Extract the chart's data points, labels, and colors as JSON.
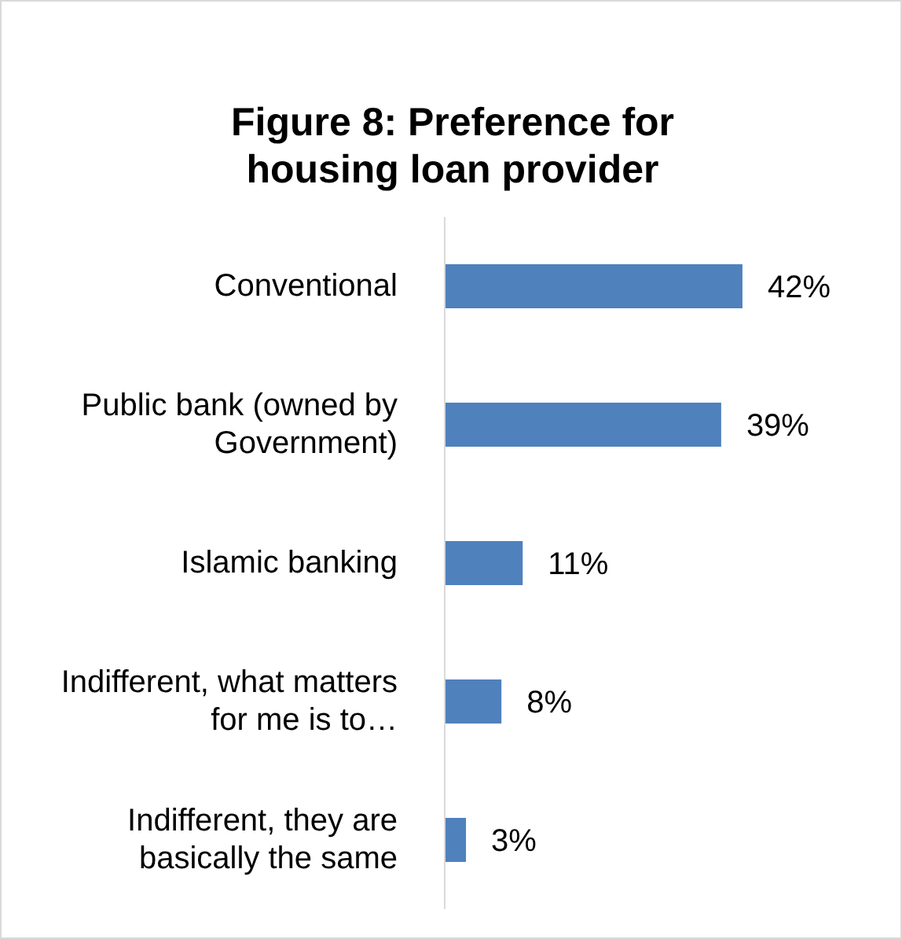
{
  "chart_data": {
    "type": "bar",
    "orientation": "horizontal",
    "title": "Figure 8: Preference for housing loan provider",
    "categories": [
      "Conventional",
      "Public bank (owned by Government)",
      "Islamic banking",
      "Indifferent, what matters for me is to…",
      "Indifferent, they are basically the same"
    ],
    "values": [
      42,
      39,
      11,
      8,
      3
    ],
    "color": "#4f81bd",
    "value_labels": [
      "42%",
      "39%",
      "11%",
      "8%",
      "3%"
    ],
    "tick_labels": "y",
    "grid": false,
    "legend": false
  }
}
